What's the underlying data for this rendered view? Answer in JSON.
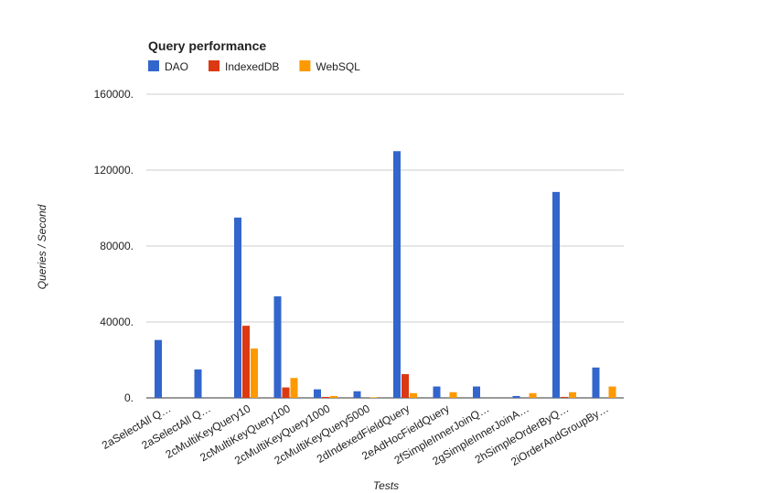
{
  "chart_data": {
    "type": "bar",
    "title": "Query performance",
    "x_label": "Tests",
    "y_label": "Queries / Second",
    "categories": [
      "2aSelectAll Q…",
      "2aSelectAll Q…",
      "2cMultiKeyQuery10",
      "2cMultiKeyQuery100",
      "2cMultiKeyQuery1000",
      "2cMultiKeyQuery5000",
      "2dIndexedFieldQuery",
      "2eAdHocFieldQuery",
      "2fSimpleInnerJoinQ…",
      "2gSimpleInnerJoinA…",
      "2hSimpleOrderByQ…",
      "2iOrderAndGroupBy…"
    ],
    "series": [
      {
        "name": "DAO",
        "color": "#3366cc",
        "values": [
          30500,
          15000,
          95000,
          53500,
          4500,
          3500,
          130000,
          6000,
          6000,
          1000,
          108500,
          16000
        ]
      },
      {
        "name": "IndexedDB",
        "color": "#dc3912",
        "values": [
          0,
          0,
          38000,
          5500,
          500,
          0,
          12500,
          0,
          0,
          0,
          500,
          0
        ]
      },
      {
        "name": "WebSQL",
        "color": "#ff9900",
        "values": [
          0,
          0,
          26000,
          10500,
          1000,
          300,
          2500,
          3000,
          0,
          2500,
          3000,
          6000
        ]
      }
    ],
    "ylim": [
      0,
      160000
    ],
    "yticks": [
      {
        "value": 0,
        "label": "0."
      },
      {
        "value": 40000,
        "label": "40000."
      },
      {
        "value": 80000,
        "label": "80000."
      },
      {
        "value": 120000,
        "label": "120000."
      },
      {
        "value": 160000,
        "label": "160000."
      }
    ],
    "grid": true,
    "legend": "top"
  }
}
